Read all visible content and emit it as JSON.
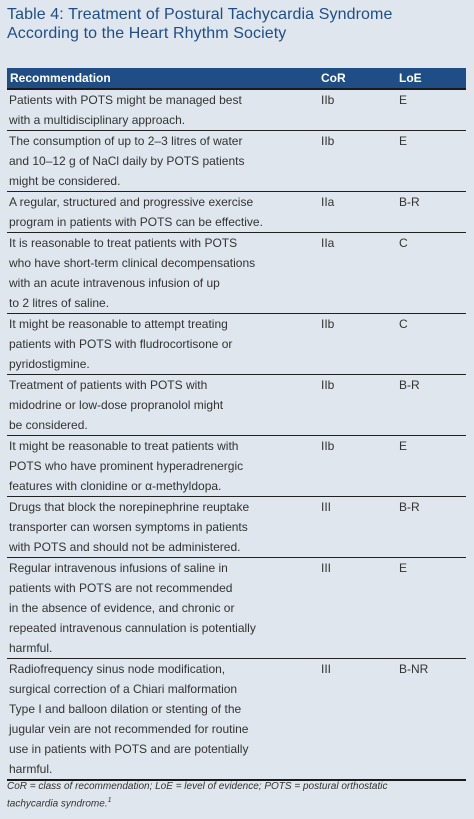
{
  "title_line1": "Table 4: Treatment of Postural Tachycardia Syndrome",
  "title_line2": "According to the Heart Rhythm Society",
  "headers": {
    "recommendation": "Recommendation",
    "cor": "CoR",
    "loe": "LoE"
  },
  "rows": [
    {
      "lines": [
        "Patients with POTS might be managed best",
        "with a multidisciplinary approach."
      ],
      "cor": "IIb",
      "loe": "E"
    },
    {
      "lines": [
        "The consumption of up to 2–3 litres of water",
        "and 10–12 g of NaCl daily by POTS patients",
        "might be considered."
      ],
      "cor": "IIb",
      "loe": "E"
    },
    {
      "lines": [
        "A regular, structured and progressive exercise",
        "program in patients with POTS can be effective."
      ],
      "cor": "IIa",
      "loe": "B-R"
    },
    {
      "lines": [
        "It is reasonable to treat patients with POTS",
        "who have short-term clinical decompensations",
        "with an acute intravenous infusion of up",
        "to 2 litres of saline."
      ],
      "cor": "IIa",
      "loe": "C"
    },
    {
      "lines": [
        "It might be reasonable to attempt treating",
        "patients with POTS with fludrocortisone or",
        "pyridostigmine."
      ],
      "cor": "IIb",
      "loe": "C"
    },
    {
      "lines": [
        "Treatment of patients with POTS with",
        "midodrine or low-dose propranolol might",
        "be considered."
      ],
      "cor": "IIb",
      "loe": "B-R"
    },
    {
      "lines": [
        "It might be reasonable to treat patients with",
        "POTS who have prominent hyperadrenergic",
        "features with clonidine or α-methyldopa."
      ],
      "cor": "IIb",
      "loe": "E"
    },
    {
      "lines": [
        "Drugs that block the norepinephrine reuptake",
        "transporter can worsen symptoms in patients",
        "with POTS and should not be administered."
      ],
      "cor": "III",
      "loe": "B-R"
    },
    {
      "lines": [
        "Regular intravenous infusions of saline in",
        "patients with POTS are not recommended",
        "in the absence of evidence, and chronic or",
        "repeated intravenous cannulation is potentially",
        "harmful."
      ],
      "cor": "III",
      "loe": "E"
    },
    {
      "lines": [
        "Radiofrequency sinus node modification,",
        "surgical correction of a Chiari malformation",
        "Type I and balloon dilation or stenting of the",
        "jugular vein are not recommended for routine",
        "use in patients with POTS and are potentially",
        "harmful."
      ],
      "cor": "III",
      "loe": "B-NR"
    }
  ],
  "footnote_line1": "CoR = class of recommendation; LoE = level of evidence; POTS = postural orthostatic",
  "footnote_line2": "tachycardia syndrome.",
  "footnote_ref": "1"
}
